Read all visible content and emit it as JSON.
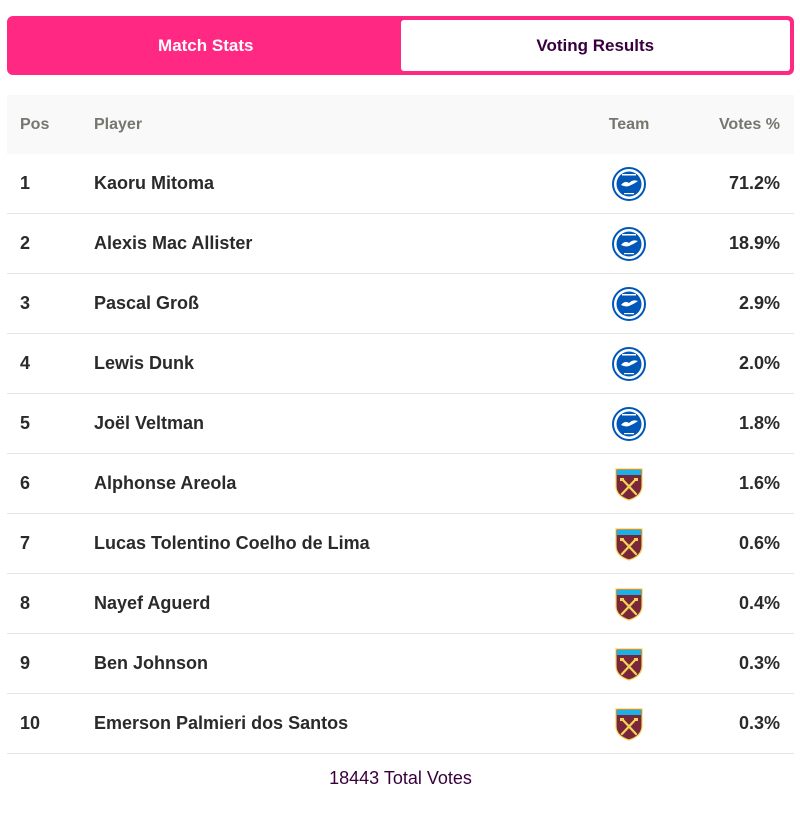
{
  "tabs": [
    {
      "label": "Match Stats",
      "active": false
    },
    {
      "label": "Voting Results",
      "active": true
    }
  ],
  "table": {
    "headers": {
      "pos": "Pos",
      "player": "Player",
      "team": "Team",
      "votes": "Votes %"
    },
    "rows": [
      {
        "pos": "1",
        "player": "Kaoru Mitoma",
        "team_icon": "brighton-crest-icon",
        "votes": "71.2%"
      },
      {
        "pos": "2",
        "player": "Alexis Mac Allister",
        "team_icon": "brighton-crest-icon",
        "votes": "18.9%"
      },
      {
        "pos": "3",
        "player": "Pascal Groß",
        "team_icon": "brighton-crest-icon",
        "votes": "2.9%"
      },
      {
        "pos": "4",
        "player": "Lewis Dunk",
        "team_icon": "brighton-crest-icon",
        "votes": "2.0%"
      },
      {
        "pos": "5",
        "player": "Joël Veltman",
        "team_icon": "brighton-crest-icon",
        "votes": "1.8%"
      },
      {
        "pos": "6",
        "player": "Alphonse Areola",
        "team_icon": "west-ham-crest-icon",
        "votes": "1.6%"
      },
      {
        "pos": "7",
        "player": "Lucas Tolentino Coelho de Lima",
        "team_icon": "west-ham-crest-icon",
        "votes": "0.6%"
      },
      {
        "pos": "8",
        "player": "Nayef Aguerd",
        "team_icon": "west-ham-crest-icon",
        "votes": "0.4%"
      },
      {
        "pos": "9",
        "player": "Ben Johnson",
        "team_icon": "west-ham-crest-icon",
        "votes": "0.3%"
      },
      {
        "pos": "10",
        "player": "Emerson Palmieri dos Santos",
        "team_icon": "west-ham-crest-icon",
        "votes": "0.3%"
      }
    ]
  },
  "footer": {
    "total_votes": "18443 Total Votes"
  },
  "colors": {
    "accent": "#ff2882",
    "primary": "#37003c",
    "brighton_blue": "#0057b8",
    "west_ham_claret": "#7a263a"
  }
}
